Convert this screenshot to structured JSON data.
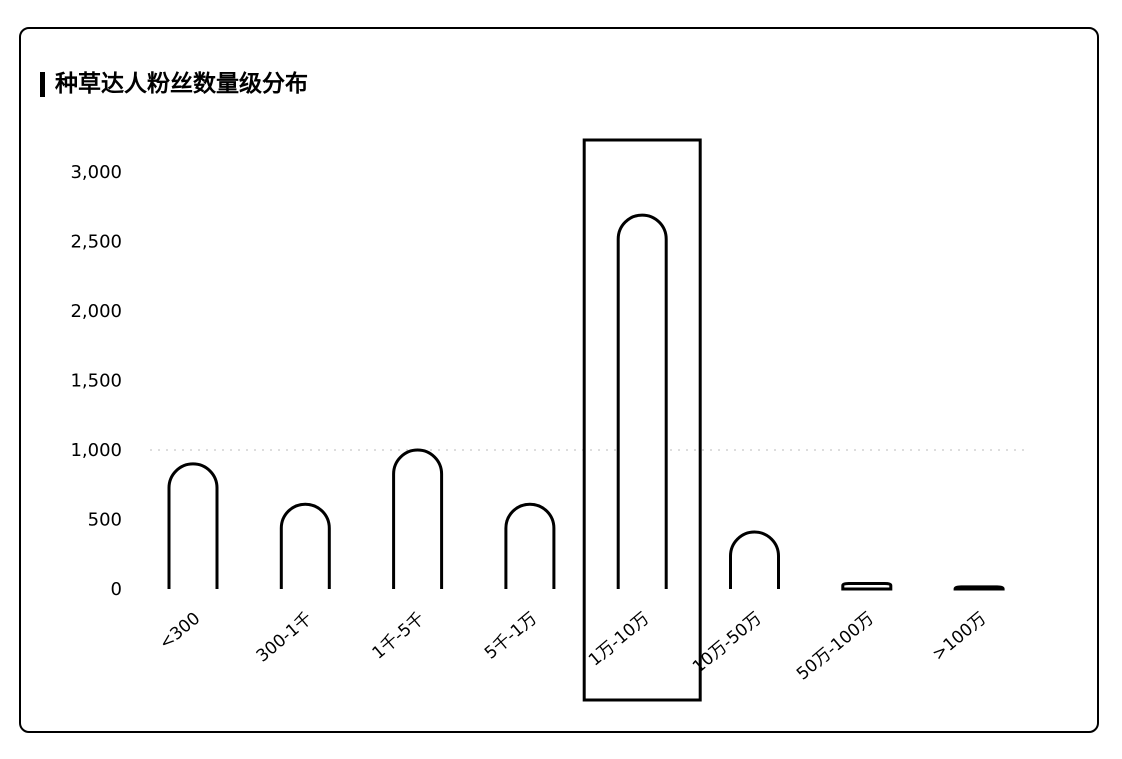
{
  "chart_data": {
    "type": "bar",
    "title": "种草达人粉丝数量级分布",
    "categories": [
      "<300",
      "300-1千",
      "1千-5千",
      "5千-1万",
      "1万-10万",
      "10万-50万",
      "50万-100万",
      ">100万"
    ],
    "values": [
      900,
      610,
      1000,
      610,
      2690,
      410,
      40,
      15
    ],
    "ylim": [
      0,
      3000
    ],
    "yticks": [
      "0",
      "500",
      "1,000",
      "1,500",
      "2,000",
      "2,500",
      "3,000"
    ],
    "ytick_values": [
      0,
      500,
      1000,
      1500,
      2000,
      2500,
      3000
    ],
    "xlabel": "",
    "ylabel": "",
    "highlighted_category": "1万-10万",
    "grid": "dotted horizontal",
    "colors": {
      "bar_fill": "#ffffff",
      "bar_stroke": "#000000",
      "text": "#000000"
    }
  }
}
